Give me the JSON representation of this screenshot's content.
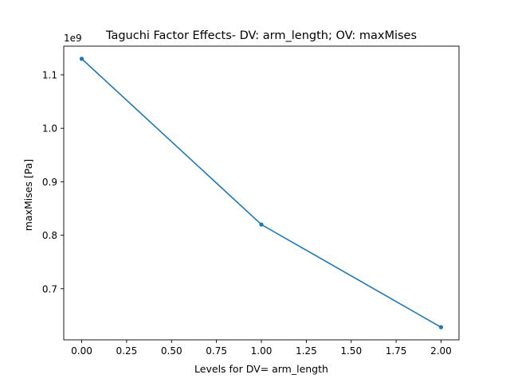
{
  "chart_data": {
    "type": "line",
    "title": "Taguchi Factor Effects- DV: arm_length; OV: maxMises",
    "xlabel": "Levels for DV= arm_length",
    "ylabel": "maxMises [Pa]",
    "y_offset_label": "1e9",
    "xlim": [
      -0.1,
      2.1
    ],
    "ylim": [
      0.6044,
      1.1536
    ],
    "x_ticks": [
      0.0,
      0.25,
      0.5,
      0.75,
      1.0,
      1.25,
      1.5,
      1.75,
      2.0
    ],
    "x_tick_labels": [
      "0.00",
      "0.25",
      "0.50",
      "0.75",
      "1.00",
      "1.25",
      "1.50",
      "1.75",
      "2.00"
    ],
    "y_ticks": [
      0.7,
      0.8,
      0.9,
      1.0,
      1.1
    ],
    "y_tick_labels": [
      "0.7",
      "0.8",
      "0.9",
      "1.0",
      "1.1"
    ],
    "grid": false,
    "series": [
      {
        "x": [
          0,
          1,
          2
        ],
        "values": [
          1.13,
          0.82,
          0.628
        ],
        "color": "#1f77b4",
        "marker": "dot"
      }
    ]
  }
}
